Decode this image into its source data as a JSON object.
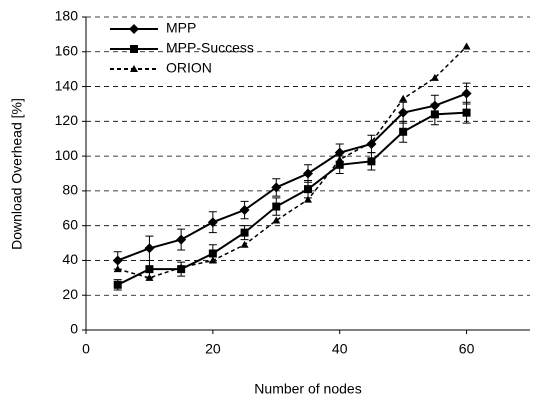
{
  "chart_data": {
    "type": "line",
    "x": [
      5,
      10,
      15,
      20,
      25,
      30,
      35,
      40,
      45,
      50,
      55,
      60
    ],
    "series": [
      {
        "name": "MPP",
        "color": "#000000",
        "marker": "diamond",
        "dash": false,
        "values": [
          40,
          47,
          52,
          62,
          69,
          82,
          90,
          102,
          107,
          125,
          129,
          136
        ],
        "errors": [
          5,
          7,
          6,
          6,
          5,
          5,
          5,
          5,
          5,
          6,
          6,
          6
        ]
      },
      {
        "name": "MPP-Success",
        "color": "#000000",
        "marker": "square",
        "dash": false,
        "values": [
          26,
          35,
          35,
          44,
          56,
          71,
          81,
          95,
          97,
          114,
          124,
          125
        ],
        "errors": [
          3,
          5,
          4,
          5,
          4,
          5,
          5,
          5,
          5,
          6,
          6,
          6
        ]
      },
      {
        "name": "ORION",
        "color": "#000000",
        "marker": "triangle",
        "dash": true,
        "values": [
          35,
          30,
          36,
          40,
          49,
          63,
          75,
          98,
          108,
          133,
          145,
          163
        ]
      }
    ],
    "xlabel": "Number of nodes",
    "ylabel": "Download Overhead [%]",
    "xlim": [
      0,
      70
    ],
    "xticks": [
      0,
      20,
      40,
      60
    ],
    "ylim": [
      0,
      180
    ],
    "yticks": [
      0,
      20,
      40,
      60,
      80,
      100,
      120,
      140,
      160,
      180
    ],
    "grid": true,
    "legend": "upper left"
  }
}
